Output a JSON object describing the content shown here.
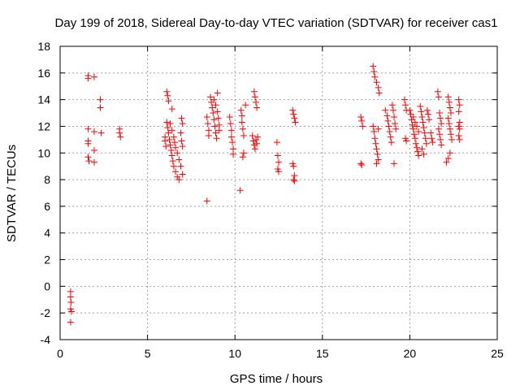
{
  "chart_data": {
    "type": "scatter",
    "title": "Day 199 of 2018, Sidereal Day-to-day VTEC variation (SDTVAR) for receiver cas1",
    "xlabel": "GPS time / hours",
    "ylabel": "SDTVAR / TECUs",
    "xlim": [
      0,
      25
    ],
    "ylim": [
      -4,
      18
    ],
    "xticks": [
      0,
      5,
      10,
      15,
      20,
      25
    ],
    "yticks": [
      -4,
      -2,
      0,
      2,
      4,
      6,
      8,
      10,
      12,
      14,
      16,
      18
    ],
    "grid": true,
    "marker": "+",
    "color": "#ff0000",
    "series": [
      {
        "name": "SDTVAR",
        "points": [
          [
            0.6,
            -0.4
          ],
          [
            0.6,
            -0.8
          ],
          [
            0.62,
            -1.2
          ],
          [
            0.6,
            -1.7
          ],
          [
            0.65,
            -1.9
          ],
          [
            0.6,
            -2.7
          ],
          [
            1.6,
            15.8
          ],
          [
            1.6,
            15.6
          ],
          [
            1.95,
            15.7
          ],
          [
            1.6,
            11.8
          ],
          [
            1.6,
            10.9
          ],
          [
            1.6,
            10.7
          ],
          [
            1.6,
            9.7
          ],
          [
            1.65,
            9.4
          ],
          [
            1.95,
            11.6
          ],
          [
            1.95,
            10.2
          ],
          [
            1.95,
            9.3
          ],
          [
            2.3,
            14.0
          ],
          [
            2.3,
            13.4
          ],
          [
            2.35,
            11.5
          ],
          [
            3.4,
            11.8
          ],
          [
            3.4,
            11.5
          ],
          [
            3.45,
            11.2
          ],
          [
            6.1,
            14.6
          ],
          [
            6.15,
            14.3
          ],
          [
            6.2,
            13.9
          ],
          [
            6.1,
            12.3
          ],
          [
            6.15,
            11.9
          ],
          [
            6.2,
            11.5
          ],
          [
            6.25,
            11.0
          ],
          [
            6.3,
            10.6
          ],
          [
            6.35,
            10.2
          ],
          [
            6.4,
            9.8
          ],
          [
            6.45,
            9.4
          ],
          [
            6.5,
            9.0
          ],
          [
            6.6,
            8.6
          ],
          [
            6.7,
            8.2
          ],
          [
            6.8,
            8.0
          ],
          [
            6.3,
            12.2
          ],
          [
            6.4,
            11.7
          ],
          [
            6.5,
            11.2
          ],
          [
            6.55,
            10.8
          ],
          [
            6.6,
            10.4
          ],
          [
            6.7,
            10.0
          ],
          [
            6.8,
            9.5
          ],
          [
            6.9,
            9.0
          ],
          [
            7.0,
            8.4
          ],
          [
            6.9,
            11.5
          ],
          [
            6.95,
            10.9
          ],
          [
            7.0,
            10.5
          ],
          [
            6.95,
            12.6
          ],
          [
            7.0,
            12.2
          ],
          [
            6.0,
            11.2
          ],
          [
            6.0,
            10.9
          ],
          [
            6.05,
            10.5
          ],
          [
            6.4,
            13.3
          ],
          [
            8.4,
            6.4
          ],
          [
            8.4,
            12.7
          ],
          [
            8.45,
            12.2
          ],
          [
            8.5,
            11.7
          ],
          [
            8.5,
            11.3
          ],
          [
            8.6,
            14.2
          ],
          [
            8.65,
            13.8
          ],
          [
            8.7,
            13.4
          ],
          [
            8.75,
            13.0
          ],
          [
            8.8,
            12.5
          ],
          [
            8.85,
            12.0
          ],
          [
            8.9,
            11.5
          ],
          [
            8.95,
            11.1
          ],
          [
            8.8,
            14.0
          ],
          [
            8.9,
            13.6
          ],
          [
            9.0,
            14.5
          ],
          [
            9.0,
            13.1
          ],
          [
            9.05,
            12.6
          ],
          [
            9.1,
            12.1
          ],
          [
            9.1,
            11.7
          ],
          [
            9.7,
            12.7
          ],
          [
            9.75,
            12.2
          ],
          [
            9.8,
            11.7
          ],
          [
            9.8,
            11.2
          ],
          [
            9.85,
            10.8
          ],
          [
            9.9,
            10.3
          ],
          [
            9.9,
            9.9
          ],
          [
            10.3,
            7.2
          ],
          [
            10.35,
            13.2
          ],
          [
            10.4,
            12.8
          ],
          [
            10.4,
            12.3
          ],
          [
            10.45,
            11.8
          ],
          [
            10.5,
            11.3
          ],
          [
            10.5,
            10.0
          ],
          [
            10.45,
            9.7
          ],
          [
            10.6,
            13.6
          ],
          [
            11.1,
            14.6
          ],
          [
            11.15,
            14.2
          ],
          [
            11.2,
            13.8
          ],
          [
            11.25,
            13.4
          ],
          [
            11.0,
            11.3
          ],
          [
            11.05,
            10.9
          ],
          [
            11.1,
            10.6
          ],
          [
            11.15,
            10.3
          ],
          [
            11.2,
            11.0
          ],
          [
            11.25,
            10.7
          ],
          [
            11.3,
            11.2
          ],
          [
            12.4,
            10.8
          ],
          [
            12.45,
            9.8
          ],
          [
            12.5,
            9.3
          ],
          [
            12.45,
            8.8
          ],
          [
            12.5,
            8.6
          ],
          [
            13.3,
            13.2
          ],
          [
            13.35,
            12.9
          ],
          [
            13.4,
            12.6
          ],
          [
            13.45,
            12.3
          ],
          [
            13.3,
            9.2
          ],
          [
            13.35,
            9.0
          ],
          [
            13.4,
            8.3
          ],
          [
            13.35,
            8.0
          ],
          [
            13.4,
            7.9
          ],
          [
            17.2,
            12.7
          ],
          [
            17.25,
            12.4
          ],
          [
            17.3,
            12.0
          ],
          [
            17.2,
            9.2
          ],
          [
            17.25,
            9.1
          ],
          [
            17.9,
            16.5
          ],
          [
            17.95,
            16.1
          ],
          [
            18.0,
            15.7
          ],
          [
            18.1,
            15.3
          ],
          [
            18.2,
            14.9
          ],
          [
            18.25,
            14.5
          ],
          [
            17.9,
            12.0
          ],
          [
            17.95,
            11.6
          ],
          [
            18.0,
            11.1
          ],
          [
            18.05,
            10.7
          ],
          [
            18.1,
            10.3
          ],
          [
            18.15,
            9.9
          ],
          [
            18.2,
            9.5
          ],
          [
            18.2,
            11.8
          ],
          [
            18.1,
            9.2
          ],
          [
            18.6,
            13.2
          ],
          [
            18.7,
            12.8
          ],
          [
            18.75,
            12.4
          ],
          [
            18.8,
            12.0
          ],
          [
            18.85,
            11.6
          ],
          [
            18.9,
            11.2
          ],
          [
            18.95,
            10.8
          ],
          [
            19.0,
            13.6
          ],
          [
            19.05,
            13.2
          ],
          [
            19.1,
            12.7
          ],
          [
            19.15,
            12.2
          ],
          [
            19.2,
            11.8
          ],
          [
            19.1,
            9.2
          ],
          [
            19.7,
            14.0
          ],
          [
            19.75,
            13.6
          ],
          [
            19.8,
            13.2
          ],
          [
            19.75,
            11.1
          ],
          [
            19.8,
            10.9
          ],
          [
            20.0,
            13.2
          ],
          [
            20.05,
            12.9
          ],
          [
            20.1,
            12.5
          ],
          [
            20.15,
            12.1
          ],
          [
            20.2,
            11.8
          ],
          [
            20.25,
            11.4
          ],
          [
            20.3,
            11.1
          ],
          [
            20.35,
            10.7
          ],
          [
            20.4,
            10.4
          ],
          [
            20.45,
            10.1
          ],
          [
            20.5,
            9.8
          ],
          [
            20.6,
            13.5
          ],
          [
            20.65,
            13.1
          ],
          [
            20.7,
            12.7
          ],
          [
            20.75,
            12.3
          ],
          [
            20.8,
            11.9
          ],
          [
            20.85,
            11.5
          ],
          [
            20.9,
            11.1
          ],
          [
            20.95,
            10.7
          ],
          [
            20.7,
            10.3
          ],
          [
            20.8,
            9.9
          ],
          [
            20.2,
            12.7
          ],
          [
            20.3,
            12.3
          ],
          [
            20.4,
            12.0
          ],
          [
            20.5,
            11.6
          ],
          [
            21.0,
            13.2
          ],
          [
            21.05,
            12.9
          ],
          [
            21.1,
            12.5
          ],
          [
            21.2,
            11.5
          ],
          [
            21.25,
            11.1
          ],
          [
            21.3,
            10.8
          ],
          [
            21.6,
            14.6
          ],
          [
            21.65,
            14.2
          ],
          [
            21.7,
            13.0
          ],
          [
            21.75,
            12.6
          ],
          [
            21.8,
            12.2
          ],
          [
            21.65,
            11.8
          ],
          [
            21.7,
            11.4
          ],
          [
            21.75,
            11.0
          ],
          [
            21.8,
            10.6
          ],
          [
            22.1,
            9.3
          ],
          [
            22.2,
            9.6
          ],
          [
            22.3,
            10.0
          ],
          [
            22.2,
            14.2
          ],
          [
            22.25,
            13.8
          ],
          [
            22.3,
            13.4
          ],
          [
            22.35,
            13.0
          ],
          [
            22.2,
            12.6
          ],
          [
            22.25,
            12.2
          ],
          [
            22.3,
            11.8
          ],
          [
            22.35,
            11.4
          ],
          [
            22.4,
            11.0
          ],
          [
            22.8,
            14.0
          ],
          [
            22.85,
            13.6
          ],
          [
            22.8,
            13.1
          ],
          [
            22.85,
            12.3
          ],
          [
            22.8,
            12.0
          ],
          [
            22.85,
            11.8
          ],
          [
            22.8,
            11.3
          ],
          [
            22.85,
            11.0
          ]
        ]
      }
    ]
  }
}
